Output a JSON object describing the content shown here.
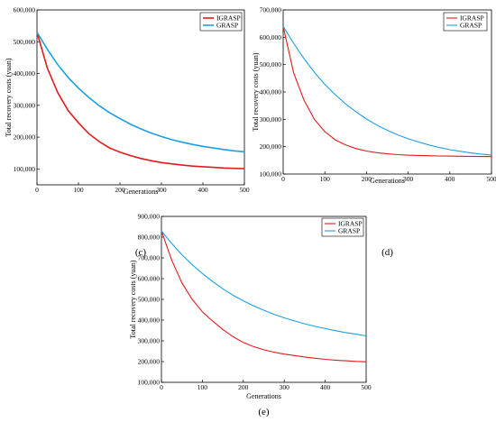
{
  "chart_data": [
    {
      "type": "line",
      "panel_label": "(c)",
      "xlabel": "Generations",
      "ylabel": "Total recovery costs (yuan)",
      "xlim": [
        0,
        500
      ],
      "ylim": [
        50000,
        600000
      ],
      "x_ticks": [
        "0",
        "100",
        "200",
        "300",
        "400",
        "500"
      ],
      "y_ticks": [
        "100,000",
        "200,000",
        "300,000",
        "400,000",
        "500,000",
        "600,000"
      ],
      "y_tick_values": [
        100000,
        200000,
        300000,
        400000,
        500000,
        600000
      ],
      "grid": false,
      "legend_position": "top-right",
      "x": [
        0,
        25,
        50,
        75,
        100,
        125,
        150,
        175,
        200,
        225,
        250,
        275,
        300,
        325,
        350,
        375,
        400,
        425,
        450,
        475,
        500
      ],
      "series": [
        {
          "name": "IGRASP",
          "color": "#e31a1c",
          "values": [
            530000,
            417000,
            340000,
            284000,
            245000,
            211000,
            186000,
            166000,
            153000,
            142000,
            133000,
            126000,
            120000,
            116000,
            112000,
            109000,
            107000,
            105000,
            103000,
            102000,
            101000
          ]
        },
        {
          "name": "GRASP",
          "color": "#1ba1e2",
          "values": [
            530000,
            476000,
            428000,
            388000,
            354000,
            325000,
            299000,
            277000,
            258000,
            241000,
            226000,
            213000,
            202000,
            192000,
            184000,
            177000,
            171000,
            166000,
            161000,
            157000,
            154000
          ]
        }
      ]
    },
    {
      "type": "line",
      "panel_label": "(d)",
      "xlabel": "Generations",
      "ylabel": "Total recovery costs (yuan)",
      "xlim": [
        0,
        500
      ],
      "ylim": [
        100000,
        700000
      ],
      "x_ticks": [
        "0",
        "100",
        "200",
        "300",
        "400",
        "500"
      ],
      "y_ticks": [
        "100,000",
        "200,000",
        "300,000",
        "400,000",
        "500,000",
        "600,000",
        "700,000"
      ],
      "y_tick_values": [
        100000,
        200000,
        300000,
        400000,
        500000,
        600000,
        700000
      ],
      "grid": false,
      "legend_position": "top-right",
      "x": [
        0,
        25,
        50,
        75,
        100,
        125,
        150,
        175,
        200,
        225,
        250,
        275,
        300,
        325,
        350,
        375,
        400,
        425,
        450,
        475,
        500
      ],
      "series": [
        {
          "name": "IGRASP",
          "color": "#e31a1c",
          "values": [
            640000,
            470000,
            370000,
            300000,
            255000,
            225000,
            206000,
            193000,
            184000,
            178000,
            174000,
            171000,
            169000,
            168000,
            167000,
            166000,
            165500,
            165000,
            164500,
            164000,
            164000
          ]
        },
        {
          "name": "GRASP",
          "color": "#1ba1e2",
          "values": [
            640000,
            578000,
            522000,
            472000,
            428000,
            390000,
            356000,
            327000,
            301000,
            279000,
            260000,
            243000,
            229000,
            217000,
            206000,
            197000,
            189000,
            183000,
            177000,
            173000,
            170000
          ]
        }
      ]
    },
    {
      "type": "line",
      "panel_label": "(e)",
      "xlabel": "Generations",
      "ylabel": "Total recovery costs (yuan)",
      "xlim": [
        0,
        500
      ],
      "ylim": [
        100000,
        900000
      ],
      "x_ticks": [
        "0",
        "100",
        "200",
        "300",
        "400",
        "500"
      ],
      "y_ticks": [
        "100,000",
        "200,000",
        "300,000",
        "400,000",
        "500,000",
        "600,000",
        "700,000",
        "800,000",
        "900,000"
      ],
      "y_tick_values": [
        100000,
        200000,
        300000,
        400000,
        500000,
        600000,
        700000,
        800000,
        900000
      ],
      "grid": false,
      "legend_position": "top-right",
      "x": [
        0,
        25,
        50,
        75,
        100,
        125,
        150,
        175,
        200,
        225,
        250,
        275,
        300,
        325,
        350,
        375,
        400,
        425,
        450,
        475,
        500
      ],
      "series": [
        {
          "name": "IGRASP",
          "color": "#e31a1c",
          "values": [
            830000,
            690000,
            580000,
            500000,
            440000,
            395000,
            355000,
            320000,
            292000,
            272000,
            257000,
            245000,
            236000,
            229000,
            222000,
            216000,
            211000,
            207000,
            204000,
            201000,
            199000
          ]
        },
        {
          "name": "GRASP",
          "color": "#1ba1e2",
          "values": [
            830000,
            770000,
            715000,
            667000,
            625000,
            586000,
            551000,
            520000,
            493000,
            469000,
            448000,
            428000,
            411000,
            396000,
            382000,
            370000,
            359000,
            349000,
            340000,
            332000,
            324000
          ]
        }
      ]
    }
  ]
}
